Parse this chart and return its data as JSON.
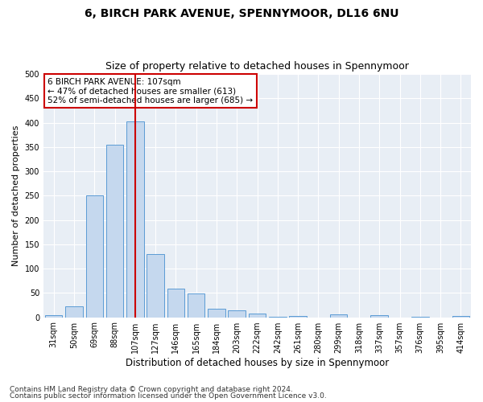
{
  "title1": "6, BIRCH PARK AVENUE, SPENNYMOOR, DL16 6NU",
  "title2": "Size of property relative to detached houses in Spennymoor",
  "xlabel": "Distribution of detached houses by size in Spennymoor",
  "ylabel": "Number of detached properties",
  "categories": [
    "31sqm",
    "50sqm",
    "69sqm",
    "88sqm",
    "107sqm",
    "127sqm",
    "146sqm",
    "165sqm",
    "184sqm",
    "203sqm",
    "222sqm",
    "242sqm",
    "261sqm",
    "280sqm",
    "299sqm",
    "318sqm",
    "337sqm",
    "357sqm",
    "376sqm",
    "395sqm",
    "414sqm"
  ],
  "values": [
    5,
    22,
    250,
    355,
    403,
    130,
    58,
    49,
    17,
    14,
    7,
    1,
    2,
    0,
    6,
    0,
    5,
    0,
    1,
    0,
    3
  ],
  "bar_color": "#c5d8ee",
  "bar_edge_color": "#5b9bd5",
  "vline_x": 4,
  "vline_color": "#cc0000",
  "annotation_title": "6 BIRCH PARK AVENUE: 107sqm",
  "annotation_line1": "← 47% of detached houses are smaller (613)",
  "annotation_line2": "52% of semi-detached houses are larger (685) →",
  "annotation_box_facecolor": "#ffffff",
  "annotation_box_edgecolor": "#cc0000",
  "ylim": [
    0,
    500
  ],
  "yticks": [
    0,
    50,
    100,
    150,
    200,
    250,
    300,
    350,
    400,
    450,
    500
  ],
  "footer1": "Contains HM Land Registry data © Crown copyright and database right 2024.",
  "footer2": "Contains public sector information licensed under the Open Government Licence v3.0.",
  "fig_bg_color": "#ffffff",
  "plot_bg_color": "#e8eef5",
  "grid_color": "#ffffff",
  "title1_fontsize": 10,
  "title2_fontsize": 9,
  "xlabel_fontsize": 8.5,
  "ylabel_fontsize": 8,
  "tick_fontsize": 7,
  "footer_fontsize": 6.5,
  "annotation_fontsize": 7.5
}
